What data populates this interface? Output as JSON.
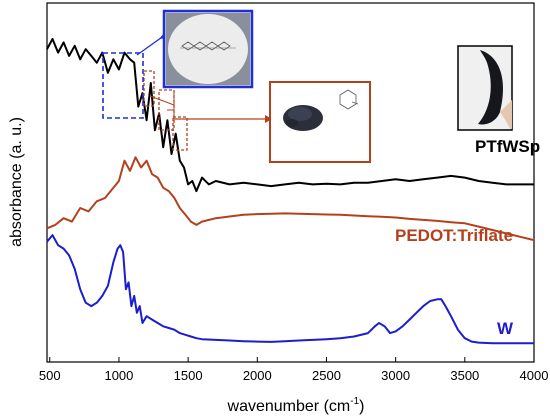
{
  "chart_data": {
    "type": "line",
    "xlabel": "wavenumber (cm",
    "xlabel_sup": "-1",
    "xlabel_close": ")",
    "ylabel": "absorbance (a. u.)",
    "xlim": [
      480,
      4000
    ],
    "xticks": [
      500,
      1000,
      1500,
      2000,
      2500,
      3000,
      3500,
      4000
    ],
    "ylim": [
      0,
      100
    ],
    "grid": false,
    "series": [
      {
        "name": "PTfWSp",
        "color": "#000000",
        "x": [
          480,
          520,
          560,
          600,
          640,
          680,
          720,
          760,
          800,
          840,
          880,
          920,
          960,
          1000,
          1040,
          1080,
          1110,
          1140,
          1170,
          1200,
          1230,
          1260,
          1290,
          1320,
          1350,
          1380,
          1410,
          1440,
          1470,
          1500,
          1530,
          1560,
          1600,
          1650,
          1700,
          1800,
          1900,
          2000,
          2100,
          2200,
          2300,
          2400,
          2500,
          2600,
          2700,
          2800,
          2900,
          3000,
          3100,
          3200,
          3300,
          3400,
          3500,
          3600,
          3700,
          3800,
          3900,
          4000
        ],
        "y": [
          89,
          92,
          88,
          91,
          87,
          90,
          86,
          89,
          87,
          85,
          88,
          82,
          86,
          83,
          88,
          86,
          85,
          72,
          76,
          68,
          79,
          65,
          70,
          60,
          68,
          58,
          64,
          56,
          54,
          49,
          50,
          47,
          51,
          49,
          50,
          49,
          49.5,
          49,
          48.5,
          49,
          49.5,
          49,
          49.2,
          49,
          49.5,
          49.5,
          50,
          50.5,
          50,
          50.5,
          51,
          51.5,
          51,
          50,
          49.5,
          49,
          49,
          49
        ]
      },
      {
        "name": "PEDOT:Triflate",
        "color": "#b5401c",
        "x": [
          480,
          540,
          600,
          660,
          720,
          780,
          840,
          900,
          960,
          1000,
          1040,
          1080,
          1120,
          1160,
          1200,
          1240,
          1280,
          1320,
          1360,
          1400,
          1440,
          1480,
          1520,
          1560,
          1600,
          1700,
          1800,
          1900,
          2000,
          2100,
          2200,
          2300,
          2400,
          2500,
          2600,
          2700,
          2800,
          2900,
          3000,
          3100,
          3200,
          3300,
          3400,
          3500,
          3600,
          3700,
          3800,
          3900,
          4000
        ],
        "y": [
          36,
          37,
          39,
          38,
          42,
          41,
          44,
          45,
          48,
          50,
          56,
          53,
          57,
          54,
          56,
          52,
          51,
          48,
          47,
          45,
          42,
          40,
          38,
          37,
          38,
          39,
          39.5,
          40,
          40.2,
          40.3,
          40.4,
          40.3,
          40.2,
          40.1,
          40,
          39.8,
          39.6,
          39.4,
          39.2,
          38.8,
          38.5,
          38.2,
          37.8,
          37.5,
          36.5,
          35.5,
          34.5,
          33.5,
          32.5
        ]
      },
      {
        "name": "W",
        "color": "#1c1cd0",
        "x": [
          480,
          520,
          560,
          600,
          640,
          680,
          720,
          760,
          800,
          840,
          880,
          920,
          960,
          990,
          1010,
          1030,
          1050,
          1070,
          1090,
          1110,
          1130,
          1150,
          1170,
          1200,
          1240,
          1280,
          1320,
          1360,
          1400,
          1440,
          1480,
          1520,
          1560,
          1600,
          1700,
          1800,
          1900,
          2000,
          2100,
          2200,
          2300,
          2400,
          2500,
          2600,
          2700,
          2800,
          2850,
          2880,
          2920,
          2960,
          3000,
          3050,
          3100,
          3150,
          3200,
          3250,
          3300,
          3330,
          3360,
          3400,
          3450,
          3500,
          3550,
          3600,
          3700,
          3800,
          3900,
          4000
        ],
        "y": [
          32,
          34,
          31,
          30,
          28,
          24,
          18,
          14,
          13,
          14,
          16,
          19,
          26,
          30,
          31,
          29,
          18,
          20,
          13,
          16,
          11,
          13,
          8,
          10,
          9,
          8,
          7,
          6.5,
          6,
          5,
          4.5,
          4,
          3.5,
          3.2,
          3,
          2.8,
          2.6,
          2.5,
          2.4,
          2.6,
          2.8,
          3,
          3.2,
          3.5,
          4,
          5,
          7,
          8,
          7,
          5,
          5.5,
          7,
          9,
          11,
          13,
          14.5,
          15,
          15,
          13,
          10,
          6,
          3.5,
          2.5,
          2.2,
          2,
          2,
          2,
          2
        ]
      }
    ]
  },
  "annotations": {
    "series_labels": [
      "PTfWSp",
      "PEDOT:Triflate",
      "W"
    ]
  },
  "colors": {
    "photo_frame": "#1f2fd6",
    "triflate_frame": "#b5401c",
    "dashed_blue": "#1f2fd6",
    "dashed_red": "#b5401c"
  }
}
